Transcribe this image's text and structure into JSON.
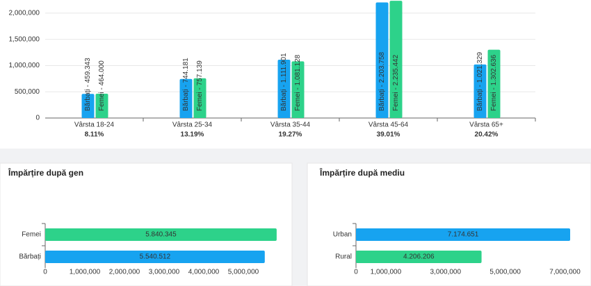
{
  "chart_data": [
    {
      "type": "grouped-bar",
      "categories": [
        "Vârsta 18-24",
        "Vârsta 25-34",
        "Vârsta 35-44",
        "Vârsta 45-64",
        "Vârsta 65+"
      ],
      "shares": [
        "8.11%",
        "13.19%",
        "19.27%",
        "39.01%",
        "20.42%"
      ],
      "series": [
        {
          "name": "Bărbați",
          "color": "#17a3f0",
          "values": [
            459343,
            744181,
            1111901,
            2203758,
            1021329
          ],
          "value_labels": [
            "Bărbați - 459.343",
            "Bărbați - 744.181",
            "Bărbați - 1.111.901",
            "Bărbați - 2.203.758",
            "Bărbați - 1.021.329"
          ]
        },
        {
          "name": "Femei",
          "color": "#2dd28a",
          "values": [
            464000,
            757139,
            1081128,
            2235442,
            1302636
          ],
          "value_labels": [
            "Femei - 464.000",
            "Femei - 757.139",
            "Femei - 1.081.128",
            "Femei - 2.235.442",
            "Femei - 1.302.636"
          ]
        }
      ],
      "ylim": [
        0,
        2250000
      ],
      "yticks": [
        0,
        {
          "value": 500000,
          "label": "500,000"
        },
        {
          "value": 1000000,
          "label": "1,000,000"
        },
        {
          "value": 1500000,
          "label": "1,500,000"
        },
        {
          "value": 2000000,
          "label": "2,000,000"
        }
      ],
      "grid": true
    },
    {
      "type": "hbar",
      "title": "Împărțire după gen",
      "categories": [
        "Femei",
        "Bărbați"
      ],
      "values": [
        5840345,
        5540512
      ],
      "value_labels": [
        "5.840.345",
        "5.540.512"
      ],
      "colors": [
        "#2dd28a",
        "#17a3f0"
      ],
      "xlim": [
        0,
        6000000
      ],
      "xticks": [
        0,
        {
          "value": 1000000,
          "label": "1,000,000"
        },
        {
          "value": 2000000,
          "label": "2,000,000"
        },
        {
          "value": 3000000,
          "label": "3,000,000"
        },
        {
          "value": 4000000,
          "label": "4,000,000"
        },
        {
          "value": 5000000,
          "label": "5,000,000"
        }
      ]
    },
    {
      "type": "hbar",
      "title": "Împărțire după mediu",
      "categories": [
        "Urban",
        "Rural"
      ],
      "values": [
        7174651,
        4206206
      ],
      "value_labels": [
        "7.174.651",
        "4.206.206"
      ],
      "colors": [
        "#17a3f0",
        "#2dd28a"
      ],
      "xlim": [
        0,
        7500000
      ],
      "xticks": [
        0,
        {
          "value": 1000000,
          "label": "1,000,000"
        },
        {
          "value": 3000000,
          "label": "3,000,000"
        },
        {
          "value": 5000000,
          "label": "5,000,000"
        },
        {
          "value": 7000000,
          "label": "7,000,000"
        }
      ]
    }
  ]
}
